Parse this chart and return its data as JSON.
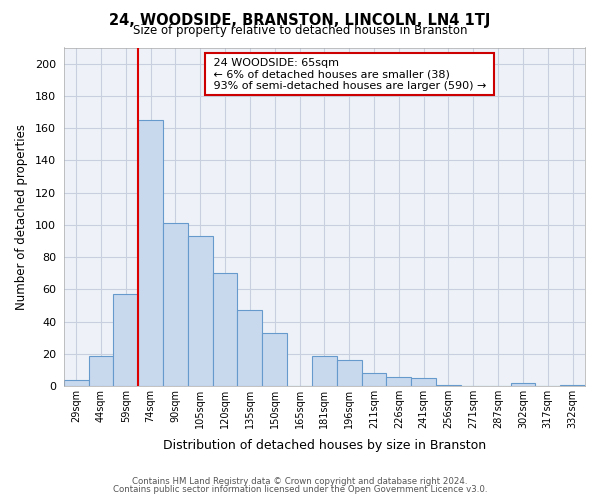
{
  "title": "24, WOODSIDE, BRANSTON, LINCOLN, LN4 1TJ",
  "subtitle": "Size of property relative to detached houses in Branston",
  "xlabel": "Distribution of detached houses by size in Branston",
  "ylabel": "Number of detached properties",
  "bar_labels": [
    "29sqm",
    "44sqm",
    "59sqm",
    "74sqm",
    "90sqm",
    "105sqm",
    "120sqm",
    "135sqm",
    "150sqm",
    "165sqm",
    "181sqm",
    "196sqm",
    "211sqm",
    "226sqm",
    "241sqm",
    "256sqm",
    "271sqm",
    "287sqm",
    "302sqm",
    "317sqm",
    "332sqm"
  ],
  "bar_values": [
    4,
    19,
    57,
    165,
    101,
    93,
    70,
    47,
    33,
    0,
    19,
    16,
    8,
    6,
    5,
    1,
    0,
    0,
    2,
    0,
    1
  ],
  "bar_color": "#c8d9ee",
  "bar_edge_color": "#6699cc",
  "vline_x_index": 2,
  "vline_color": "#dd0000",
  "ylim": [
    0,
    210
  ],
  "yticks": [
    0,
    20,
    40,
    60,
    80,
    100,
    120,
    140,
    160,
    180,
    200
  ],
  "annotation_title": "24 WOODSIDE: 65sqm",
  "annotation_line1": "← 6% of detached houses are smaller (38)",
  "annotation_line2": "93% of semi-detached houses are larger (590) →",
  "annotation_box_color": "#ffffff",
  "annotation_box_edge": "#cc0000",
  "footer_line1": "Contains HM Land Registry data © Crown copyright and database right 2024.",
  "footer_line2": "Contains public sector information licensed under the Open Government Licence v3.0.",
  "bg_color": "#ffffff",
  "grid_color": "#c8d0e0",
  "plot_bg_color": "#eef2f8"
}
